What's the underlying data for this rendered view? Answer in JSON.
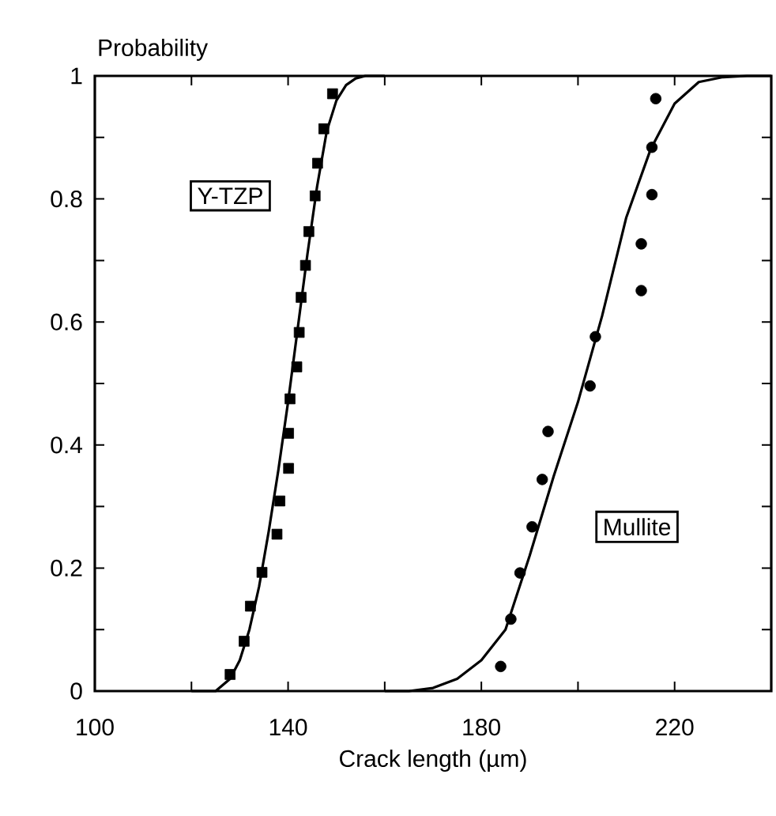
{
  "chart_data": {
    "type": "scatter",
    "xlabel": "Crack length (µm)",
    "ylabel": "Probability",
    "xlim": [
      100,
      240
    ],
    "ylim": [
      0,
      1
    ],
    "xticks": [
      100,
      {
        "value": 120,
        "label": null
      },
      140,
      {
        "value": 160,
        "label": null
      },
      180,
      {
        "value": 200,
        "label": null
      },
      220,
      {
        "value": 240,
        "label": null
      }
    ],
    "yticks": [
      0,
      {
        "value": 0.1,
        "label": null
      },
      0.2,
      {
        "value": 0.3,
        "label": null
      },
      0.4,
      {
        "value": 0.5,
        "label": null
      },
      0.6,
      {
        "value": 0.7,
        "label": null
      },
      0.8,
      {
        "value": 0.9,
        "label": null
      },
      1
    ],
    "series": [
      {
        "name": "Y-TZP",
        "marker": "square",
        "color": "#000000",
        "x": [
          128.0,
          130.9,
          132.2,
          134.6,
          137.7,
          138.3,
          140.1,
          140.1,
          140.4,
          141.8,
          142.3,
          142.7,
          143.6,
          144.3,
          145.6,
          146.1,
          147.4,
          149.2
        ],
        "values": [
          0.027,
          0.081,
          0.138,
          0.193,
          0.255,
          0.309,
          0.362,
          0.419,
          0.475,
          0.527,
          0.583,
          0.64,
          0.692,
          0.747,
          0.805,
          0.858,
          0.914,
          0.971
        ]
      },
      {
        "type": "line",
        "marker": "none",
        "line_style": "solid",
        "color": "#000000",
        "x": [
          120,
          125,
          128,
          130,
          132,
          134,
          136,
          138,
          140,
          142,
          144,
          146,
          148,
          150,
          152,
          154,
          156,
          160
        ],
        "values": [
          0,
          0,
          0.02,
          0.05,
          0.1,
          0.17,
          0.26,
          0.36,
          0.47,
          0.59,
          0.71,
          0.82,
          0.91,
          0.96,
          0.985,
          0.996,
          1,
          1
        ]
      },
      {
        "name": "Mullite",
        "marker": "circle",
        "color": "#000000",
        "x": [
          184.0,
          186.1,
          188.0,
          190.5,
          192.6,
          193.8,
          202.5,
          203.6,
          213.1,
          213.1,
          215.3,
          215.3,
          216.1
        ],
        "values": [
          0.04,
          0.117,
          0.192,
          0.267,
          0.344,
          0.422,
          0.496,
          0.576,
          0.651,
          0.727,
          0.807,
          0.884,
          0.963
        ]
      },
      {
        "type": "line",
        "marker": "none",
        "line_style": "solid",
        "color": "#000000",
        "x": [
          160,
          165,
          170,
          175,
          180,
          185,
          190,
          195,
          200,
          205,
          210,
          215,
          220,
          225,
          230,
          235,
          240
        ],
        "values": [
          0,
          0,
          0.005,
          0.02,
          0.05,
          0.1,
          0.22,
          0.35,
          0.47,
          0.61,
          0.77,
          0.88,
          0.955,
          0.99,
          0.998,
          1,
          1
        ]
      }
    ]
  }
}
